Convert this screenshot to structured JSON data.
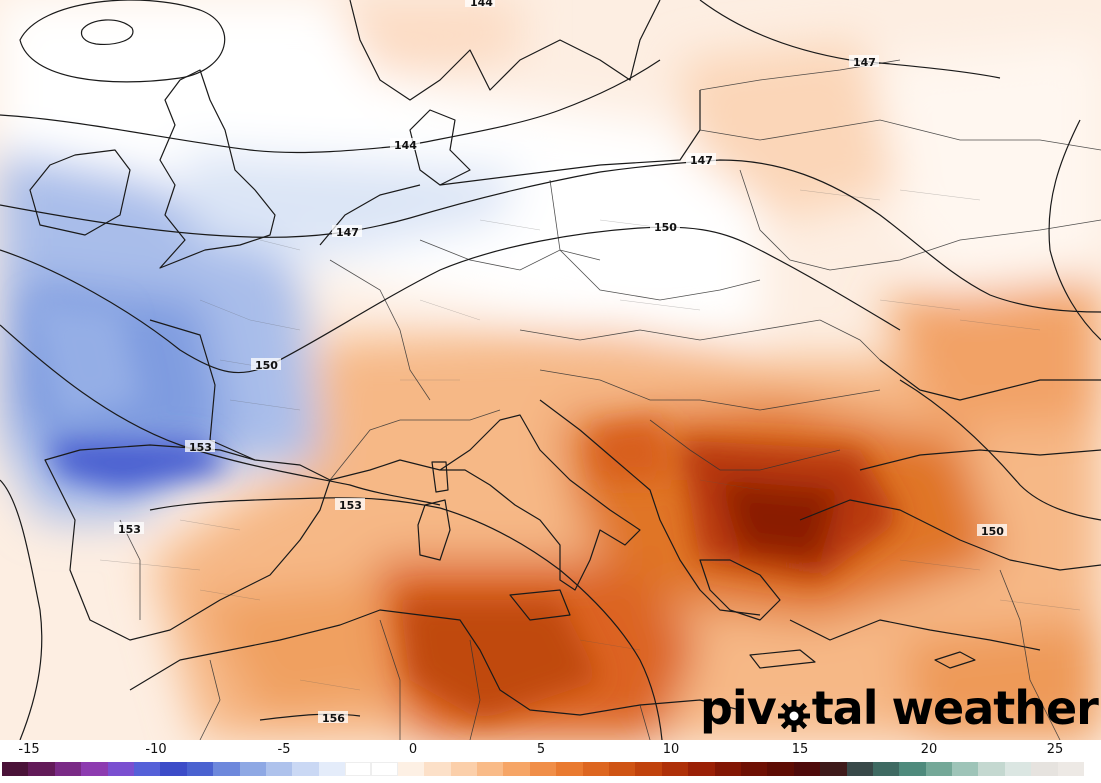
{
  "brand": {
    "logo_text_before": "piv",
    "logo_text_after": "tal",
    "logo_text_second": "weather",
    "logo_icon": "gear-icon"
  },
  "contour_labels": [
    "144",
    "147",
    "144",
    "147",
    "147",
    "150",
    "150",
    "153",
    "153",
    "153",
    "150",
    "156"
  ],
  "colorbar": {
    "tick_labels": [
      "-15",
      "-10",
      "-5",
      "0",
      "5",
      "10",
      "15",
      "20",
      "25"
    ],
    "colors": [
      "#4a1238",
      "#621a58",
      "#7a2a86",
      "#8d3bb0",
      "#7a4fd0",
      "#5560d8",
      "#3c4cc8",
      "#4a62d0",
      "#6d88dc",
      "#8ea8e4",
      "#aec2ec",
      "#cad8f4",
      "#e4ecfa",
      "#ffffff",
      "#ffffff",
      "#fdf0e4",
      "#fce0c8",
      "#fbcfaa",
      "#f9bb88",
      "#f6a566",
      "#f08e48",
      "#e97a30",
      "#dd6620",
      "#cf5414",
      "#c0420c",
      "#ae3008",
      "#9a2006",
      "#821604",
      "#6e1004",
      "#5e0c04",
      "#4e0a0a",
      "#3e1a1a",
      "#384848",
      "#3e6a62",
      "#4e8a7c",
      "#74a898",
      "#9ec4b8",
      "#c4d8d0",
      "#dbe6e2",
      "#e6e3df",
      "#ede9e5"
    ]
  },
  "palette": {
    "cold_deep": "#4a5fd0",
    "cold_mid": "#8ba5e2",
    "cold_light": "#d4e0f5",
    "warm_light": "#fbd6b8",
    "warm_mid": "#f3a366",
    "warm_deep": "#dc6420",
    "hot": "#a52a0a",
    "hottest": "#7a1404",
    "contour_line": "#1a1a1a"
  }
}
